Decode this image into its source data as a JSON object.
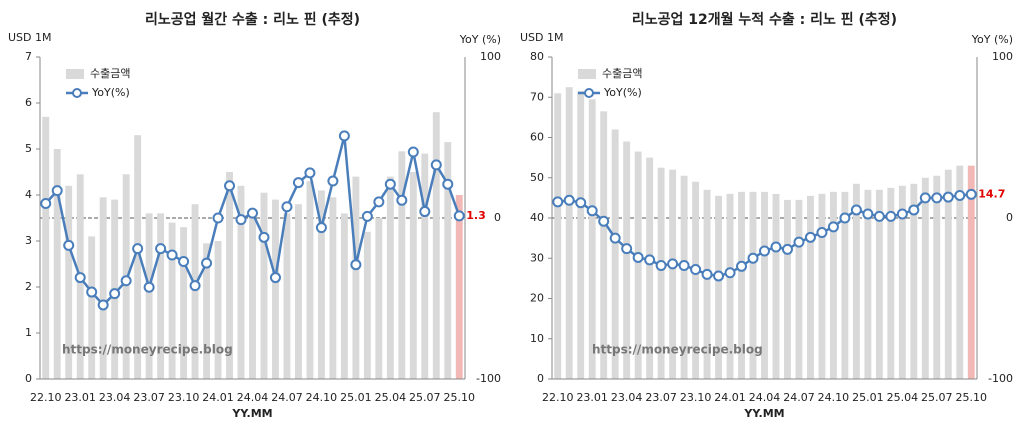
{
  "chart_data": [
    {
      "type": "bar_line",
      "title": "리노공업 월간 수출 : 리노 핀 (추정)",
      "y_label": "USD 1M",
      "y2_label": "YoY (%)",
      "x_label": "YY.MM",
      "annotation": "https://moneyrecipe.blog",
      "categories": [
        "22.10",
        null,
        null,
        "23.01",
        null,
        null,
        "23.04",
        null,
        null,
        "23.07",
        null,
        null,
        "23.10",
        null,
        null,
        "24.01",
        null,
        null,
        "24.04",
        null,
        null,
        "24.07",
        null,
        null,
        "24.10",
        null,
        null,
        "25.01",
        null,
        null,
        "25.04",
        null,
        null,
        "25.07",
        null,
        null,
        "25.10"
      ],
      "series": [
        {
          "name": "수출금액",
          "color": "#d9d9d9",
          "highlight_color": "#f2b8b5",
          "values": [
            5.7,
            5.0,
            4.2,
            4.45,
            3.1,
            3.95,
            3.9,
            4.45,
            5.3,
            3.6,
            3.6,
            3.4,
            3.3,
            3.8,
            2.95,
            3.0,
            4.5,
            4.2,
            3.7,
            4.05,
            3.9,
            3.6,
            3.8,
            4.3,
            4.1,
            3.95,
            3.6,
            4.4,
            3.2,
            3.5,
            4.4,
            4.95,
            4.5,
            4.9,
            5.8,
            5.15,
            4.0
          ]
        },
        {
          "name": "YoY(%)",
          "color": "#4a7ebb",
          "axis": "y2",
          "values": [
            9,
            17,
            -17,
            -37,
            -46,
            -54,
            -47,
            -39,
            -19,
            -43,
            -19,
            -23,
            -27,
            -42,
            -28,
            0,
            20,
            -1,
            3,
            -12,
            -37,
            7,
            22,
            28,
            -6,
            23,
            51,
            -29,
            1,
            10,
            21,
            11,
            41,
            4,
            33,
            21,
            1.3
          ]
        }
      ],
      "ylim": [
        0,
        7
      ],
      "yticks": [
        0,
        1,
        2,
        3,
        4,
        5,
        6,
        7
      ],
      "y2lim": [
        -100,
        100
      ],
      "y2ticks": [
        -100,
        0,
        100
      ]
    },
    {
      "type": "bar_line",
      "title": "리노공업 12개월 누적 수출 : 리노 핀 (추정)",
      "y_label": "USD 1M",
      "y2_label": "YoY (%)",
      "x_label": "YY.MM",
      "annotation": "https://moneyrecipe.blog",
      "categories": [
        "22.10",
        null,
        null,
        "23.01",
        null,
        null,
        "23.04",
        null,
        null,
        "23.07",
        null,
        null,
        "23.10",
        null,
        null,
        "24.01",
        null,
        null,
        "24.04",
        null,
        null,
        "24.07",
        null,
        null,
        "24.10",
        null,
        null,
        "25.01",
        null,
        null,
        "25.04",
        null,
        null,
        "25.07",
        null,
        null,
        "25.10"
      ],
      "series": [
        {
          "name": "수출금액",
          "color": "#d9d9d9",
          "highlight_color": "#f2b8b5",
          "values": [
            71,
            72.5,
            71.5,
            69.5,
            66.5,
            62,
            59,
            56.5,
            55,
            52.5,
            52,
            50.5,
            49,
            47,
            45.5,
            46,
            46.5,
            46.5,
            46.5,
            46,
            44.5,
            44.5,
            45.5,
            46,
            46.5,
            46.5,
            48.5,
            47,
            47,
            47.5,
            48,
            48.5,
            50,
            50.5,
            52,
            53,
            53
          ]
        },
        {
          "name": "YoY(%)",
          "color": "#4a7ebb",
          "axis": "y2",
          "values": [
            10,
            11,
            9.5,
            4.5,
            -2,
            -12.5,
            -19,
            -24.5,
            -26,
            -29.5,
            -28.5,
            -29.5,
            -32,
            -35,
            -36,
            -34,
            -30,
            -25,
            -20.5,
            -18,
            -19.5,
            -15,
            -12,
            -9,
            -5.5,
            0,
            5,
            2.5,
            1,
            1,
            2.5,
            5,
            12.5,
            12.5,
            13,
            14,
            14.7
          ]
        }
      ],
      "ylim": [
        0,
        80
      ],
      "yticks": [
        0,
        10,
        20,
        30,
        40,
        50,
        60,
        70,
        80
      ],
      "y2lim": [
        -100,
        100
      ],
      "y2ticks": [
        -100,
        0,
        100
      ]
    }
  ]
}
